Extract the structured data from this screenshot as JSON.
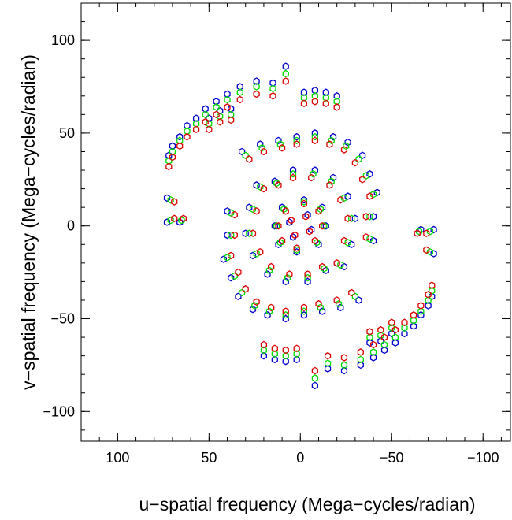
{
  "chart_data": {
    "type": "scatter",
    "title": "",
    "xlabel": "u−spatial frequency (Mega−cycles/radian)",
    "ylabel": "v−spatial frequency (Mega−cycles/radian)",
    "xlim": [
      120,
      -115
    ],
    "ylim": [
      -116,
      120
    ],
    "x_ticks": [
      {
        "value": 100,
        "label": "100"
      },
      {
        "value": 50,
        "label": "50"
      },
      {
        "value": 0,
        "label": "0"
      },
      {
        "value": -50,
        "label": "−50"
      },
      {
        "value": -100,
        "label": "−100"
      }
    ],
    "y_ticks": [
      {
        "value": 100,
        "label": "100"
      },
      {
        "value": 50,
        "label": "50"
      },
      {
        "value": 0,
        "label": "0"
      },
      {
        "value": -50,
        "label": "−50"
      },
      {
        "value": -100,
        "label": "−100"
      }
    ],
    "minor_tick_step": 10,
    "grid": false,
    "legend": "none",
    "marker": "hollow-hexagon",
    "series_colors": [
      "#0000cc",
      "#00dd00",
      "#dd0000"
    ],
    "series": [
      {
        "points": [
          [
            8,
            86
          ],
          [
            15,
            77
          ],
          [
            24,
            78
          ],
          [
            33,
            75
          ],
          [
            40,
            71
          ],
          [
            46,
            67
          ],
          [
            52,
            63
          ],
          [
            57,
            58
          ],
          [
            62,
            54
          ],
          [
            66,
            48
          ],
          [
            70,
            43
          ],
          [
            72,
            38
          ],
          [
            -2,
            72
          ],
          [
            -8,
            73
          ],
          [
            -14,
            72
          ],
          [
            -20,
            70
          ],
          [
            50,
            58
          ],
          [
            44,
            62
          ],
          [
            38,
            63
          ],
          [
            73,
            15
          ],
          [
            73,
            2
          ],
          [
            66,
            2
          ],
          [
            -8,
            -86
          ],
          [
            -15,
            -77
          ],
          [
            -24,
            -78
          ],
          [
            -33,
            -75
          ],
          [
            -40,
            -71
          ],
          [
            -46,
            -67
          ],
          [
            -52,
            -63
          ],
          [
            -57,
            -58
          ],
          [
            -62,
            -54
          ],
          [
            -66,
            -48
          ],
          [
            -70,
            -43
          ],
          [
            -72,
            -38
          ],
          [
            2,
            -72
          ],
          [
            8,
            -73
          ],
          [
            14,
            -72
          ],
          [
            20,
            -70
          ],
          [
            -50,
            -58
          ],
          [
            -44,
            -62
          ],
          [
            -38,
            -63
          ],
          [
            -73,
            -15
          ],
          [
            -73,
            -2
          ],
          [
            -66,
            -2
          ],
          [
            40,
            8
          ],
          [
            40,
            -5
          ],
          [
            42,
            -18
          ],
          [
            38,
            -28
          ],
          [
            34,
            -38
          ],
          [
            26,
            -45
          ],
          [
            18,
            -48
          ],
          [
            8,
            -50
          ],
          [
            -2,
            -48
          ],
          [
            -12,
            -46
          ],
          [
            -22,
            -44
          ],
          [
            -32,
            -40
          ],
          [
            -40,
            -8
          ],
          [
            -40,
            5
          ],
          [
            -42,
            18
          ],
          [
            -38,
            28
          ],
          [
            -34,
            38
          ],
          [
            -26,
            45
          ],
          [
            -18,
            48
          ],
          [
            -8,
            50
          ],
          [
            2,
            48
          ],
          [
            12,
            46
          ],
          [
            22,
            44
          ],
          [
            32,
            40
          ],
          [
            24,
            22
          ],
          [
            28,
            10
          ],
          [
            30,
            -4
          ],
          [
            26,
            -16
          ],
          [
            18,
            -26
          ],
          [
            8,
            -30
          ],
          [
            -4,
            -30
          ],
          [
            -14,
            -24
          ],
          [
            -24,
            -22
          ],
          [
            -28,
            -10
          ],
          [
            -30,
            4
          ],
          [
            -26,
            16
          ],
          [
            -18,
            26
          ],
          [
            -8,
            30
          ],
          [
            4,
            30
          ],
          [
            14,
            24
          ],
          [
            10,
            10
          ],
          [
            14,
            0
          ],
          [
            12,
            -10
          ],
          [
            2,
            -14
          ],
          [
            -10,
            -10
          ],
          [
            -14,
            0
          ],
          [
            -12,
            10
          ],
          [
            -2,
            14
          ],
          [
            6,
            2
          ],
          [
            -6,
            -2
          ],
          [
            4,
            -6
          ],
          [
            -4,
            6
          ]
        ]
      },
      {
        "points": [
          [
            8,
            82
          ],
          [
            15,
            74
          ],
          [
            24,
            75
          ],
          [
            33,
            72
          ],
          [
            40,
            68
          ],
          [
            46,
            64
          ],
          [
            52,
            60
          ],
          [
            57,
            55
          ],
          [
            62,
            51
          ],
          [
            66,
            46
          ],
          [
            70,
            40
          ],
          [
            72,
            35
          ],
          [
            -2,
            69
          ],
          [
            -8,
            70
          ],
          [
            -14,
            69
          ],
          [
            -20,
            67
          ],
          [
            50,
            55
          ],
          [
            44,
            59
          ],
          [
            38,
            60
          ],
          [
            71,
            14
          ],
          [
            71,
            3
          ],
          [
            65,
            3
          ],
          [
            -8,
            -82
          ],
          [
            -15,
            -74
          ],
          [
            -24,
            -75
          ],
          [
            -33,
            -72
          ],
          [
            -40,
            -68
          ],
          [
            -46,
            -64
          ],
          [
            -52,
            -60
          ],
          [
            -57,
            -55
          ],
          [
            -62,
            -51
          ],
          [
            -66,
            -46
          ],
          [
            -70,
            -40
          ],
          [
            -72,
            -35
          ],
          [
            2,
            -69
          ],
          [
            8,
            -70
          ],
          [
            14,
            -69
          ],
          [
            20,
            -67
          ],
          [
            -50,
            -55
          ],
          [
            -44,
            -59
          ],
          [
            -38,
            -60
          ],
          [
            -71,
            -14
          ],
          [
            -71,
            -3
          ],
          [
            -65,
            -3
          ],
          [
            38,
            7
          ],
          [
            38,
            -5
          ],
          [
            40,
            -17
          ],
          [
            36,
            -27
          ],
          [
            32,
            -36
          ],
          [
            25,
            -43
          ],
          [
            17,
            -46
          ],
          [
            8,
            -48
          ],
          [
            -2,
            -46
          ],
          [
            -11,
            -44
          ],
          [
            -21,
            -42
          ],
          [
            -30,
            -38
          ],
          [
            -38,
            -7
          ],
          [
            -38,
            5
          ],
          [
            -40,
            17
          ],
          [
            -36,
            27
          ],
          [
            -32,
            36
          ],
          [
            -25,
            43
          ],
          [
            -17,
            46
          ],
          [
            -8,
            48
          ],
          [
            2,
            46
          ],
          [
            11,
            44
          ],
          [
            21,
            42
          ],
          [
            30,
            38
          ],
          [
            22,
            21
          ],
          [
            26,
            9
          ],
          [
            28,
            -4
          ],
          [
            24,
            -15
          ],
          [
            17,
            -24
          ],
          [
            7,
            -28
          ],
          [
            -4,
            -28
          ],
          [
            -13,
            -23
          ],
          [
            -22,
            -21
          ],
          [
            -26,
            -9
          ],
          [
            -28,
            4
          ],
          [
            -24,
            15
          ],
          [
            -17,
            24
          ],
          [
            -7,
            28
          ],
          [
            4,
            28
          ],
          [
            13,
            23
          ],
          [
            9,
            9
          ],
          [
            13,
            0
          ],
          [
            11,
            -9
          ],
          [
            2,
            -13
          ],
          [
            -9,
            -9
          ],
          [
            -13,
            0
          ],
          [
            -11,
            9
          ],
          [
            -2,
            13
          ]
        ]
      },
      {
        "points": [
          [
            8,
            78
          ],
          [
            15,
            70
          ],
          [
            24,
            71
          ],
          [
            33,
            68
          ],
          [
            40,
            64
          ],
          [
            46,
            60
          ],
          [
            52,
            56
          ],
          [
            57,
            52
          ],
          [
            62,
            48
          ],
          [
            66,
            43
          ],
          [
            70,
            37
          ],
          [
            72,
            32
          ],
          [
            -2,
            66
          ],
          [
            -8,
            67
          ],
          [
            -14,
            66
          ],
          [
            -20,
            64
          ],
          [
            50,
            52
          ],
          [
            44,
            56
          ],
          [
            38,
            57
          ],
          [
            69,
            13
          ],
          [
            69,
            4
          ],
          [
            64,
            4
          ],
          [
            -8,
            -78
          ],
          [
            -15,
            -70
          ],
          [
            -24,
            -71
          ],
          [
            -33,
            -68
          ],
          [
            -40,
            -64
          ],
          [
            -46,
            -60
          ],
          [
            -52,
            -56
          ],
          [
            -57,
            -52
          ],
          [
            -62,
            -48
          ],
          [
            -66,
            -43
          ],
          [
            -70,
            -37
          ],
          [
            -72,
            -32
          ],
          [
            2,
            -66
          ],
          [
            8,
            -67
          ],
          [
            14,
            -66
          ],
          [
            20,
            -64
          ],
          [
            -50,
            -52
          ],
          [
            -44,
            -56
          ],
          [
            -38,
            -57
          ],
          [
            -69,
            -13
          ],
          [
            -69,
            -4
          ],
          [
            -64,
            -4
          ],
          [
            36,
            6
          ],
          [
            36,
            -5
          ],
          [
            38,
            -16
          ],
          [
            34,
            -25
          ],
          [
            30,
            -34
          ],
          [
            24,
            -41
          ],
          [
            16,
            -44
          ],
          [
            8,
            -46
          ],
          [
            -2,
            -44
          ],
          [
            -10,
            -42
          ],
          [
            -20,
            -40
          ],
          [
            -28,
            -36
          ],
          [
            -36,
            -6
          ],
          [
            -36,
            5
          ],
          [
            -38,
            16
          ],
          [
            -34,
            25
          ],
          [
            -30,
            34
          ],
          [
            -24,
            41
          ],
          [
            -16,
            44
          ],
          [
            -8,
            46
          ],
          [
            2,
            44
          ],
          [
            10,
            42
          ],
          [
            20,
            40
          ],
          [
            28,
            36
          ],
          [
            20,
            20
          ],
          [
            24,
            8
          ],
          [
            26,
            -4
          ],
          [
            22,
            -14
          ],
          [
            16,
            -22
          ],
          [
            6,
            -26
          ],
          [
            -4,
            -26
          ],
          [
            -12,
            -22
          ],
          [
            -20,
            -20
          ],
          [
            -24,
            -8
          ],
          [
            -26,
            4
          ],
          [
            -22,
            14
          ],
          [
            -16,
            22
          ],
          [
            -6,
            26
          ],
          [
            4,
            26
          ],
          [
            12,
            22
          ],
          [
            8,
            8
          ],
          [
            12,
            0
          ],
          [
            10,
            -8
          ],
          [
            2,
            -12
          ],
          [
            -8,
            -8
          ],
          [
            -12,
            0
          ],
          [
            -10,
            8
          ],
          [
            -2,
            12
          ],
          [
            5,
            3
          ],
          [
            -5,
            -3
          ],
          [
            3,
            -5
          ],
          [
            -3,
            5
          ]
        ]
      }
    ]
  }
}
